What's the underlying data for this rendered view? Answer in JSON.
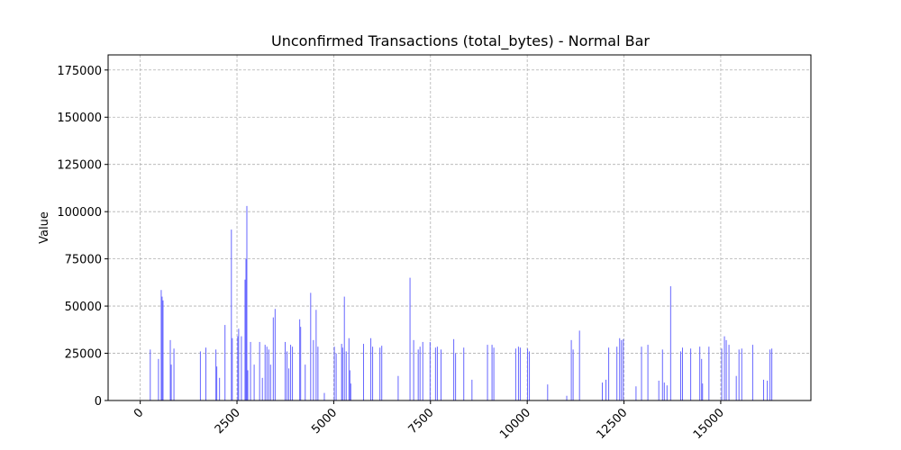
{
  "chart_data": {
    "type": "bar",
    "title": "Unconfirmed Transactions (total_bytes) - Normal Bar",
    "ylabel": "Value",
    "color": "#6666ff",
    "grid": true,
    "xlim": [
      -830,
      17330
    ],
    "ylim": [
      0,
      183000
    ],
    "xticks": [
      0,
      2500,
      5000,
      7500,
      10000,
      12500,
      15000
    ],
    "yticks": [
      0,
      25000,
      50000,
      75000,
      100000,
      125000,
      150000,
      175000
    ],
    "x": [
      259,
      471,
      542,
      565,
      589,
      777,
      801,
      871,
      1554,
      1696,
      1955,
      1978,
      2049,
      2190,
      2355,
      2379,
      2520,
      2543,
      2614,
      2708,
      2732,
      2755,
      2779,
      2850,
      2944,
      3085,
      3156,
      3226,
      3273,
      3321,
      3368,
      3438,
      3485,
      3745,
      3792,
      3839,
      3886,
      3933,
      4121,
      4145,
      4263,
      4404,
      4475,
      4545,
      4592,
      4757,
      5016,
      5063,
      5204,
      5228,
      5275,
      5322,
      5393,
      5417,
      5440,
      5770,
      5958,
      6005,
      6194,
      6241,
      6665,
      6971,
      7065,
      7183,
      7230,
      7301,
      7489,
      7630,
      7677,
      7772,
      8101,
      8148,
      8360,
      8572,
      8973,
      9090,
      9137,
      9703,
      9773,
      9820,
      10009,
      10056,
      10527,
      11021,
      11139,
      11186,
      11351,
      11940,
      12034,
      12105,
      12317,
      12388,
      12435,
      12482,
      12811,
      12953,
      13118,
      13400,
      13495,
      13542,
      13612,
      13706,
      13965,
      14012,
      14224,
      14459,
      14506,
      14530,
      14695,
      15025,
      15096,
      15143,
      15213,
      15402,
      15472,
      15543,
      15826,
      16108,
      16203,
      16273,
      16320
    ],
    "values": [
      27000,
      22000,
      58500,
      55000,
      53000,
      32000,
      19000,
      27500,
      26000,
      28000,
      27000,
      18000,
      12000,
      40000,
      90500,
      33000,
      34000,
      38000,
      34000,
      64000,
      75000,
      103000,
      16000,
      31000,
      19000,
      31000,
      12000,
      29500,
      28500,
      27000,
      19000,
      44000,
      48500,
      31000,
      26000,
      17000,
      29500,
      28500,
      43000,
      39000,
      19000,
      57000,
      32000,
      48000,
      28500,
      4000,
      28500,
      25000,
      30000,
      28000,
      55000,
      26000,
      33000,
      16000,
      9000,
      30000,
      33000,
      28500,
      28000,
      29000,
      13000,
      65000,
      32000,
      27000,
      28500,
      31000,
      31000,
      28000,
      28500,
      27000,
      32500,
      25000,
      28000,
      11000,
      29500,
      29500,
      28000,
      27500,
      28500,
      28000,
      27500,
      26000,
      8500,
      2500,
      32000,
      27000,
      37000,
      9500,
      11000,
      28000,
      28500,
      33000,
      32000,
      32500,
      7500,
      28500,
      29500,
      10500,
      27000,
      9500,
      8000,
      60500,
      26000,
      28000,
      27500,
      28500,
      22000,
      9000,
      28500,
      27500,
      34000,
      32000,
      29500,
      13000,
      27000,
      27500,
      29500,
      11000,
      10500,
      27000,
      27500
    ]
  }
}
